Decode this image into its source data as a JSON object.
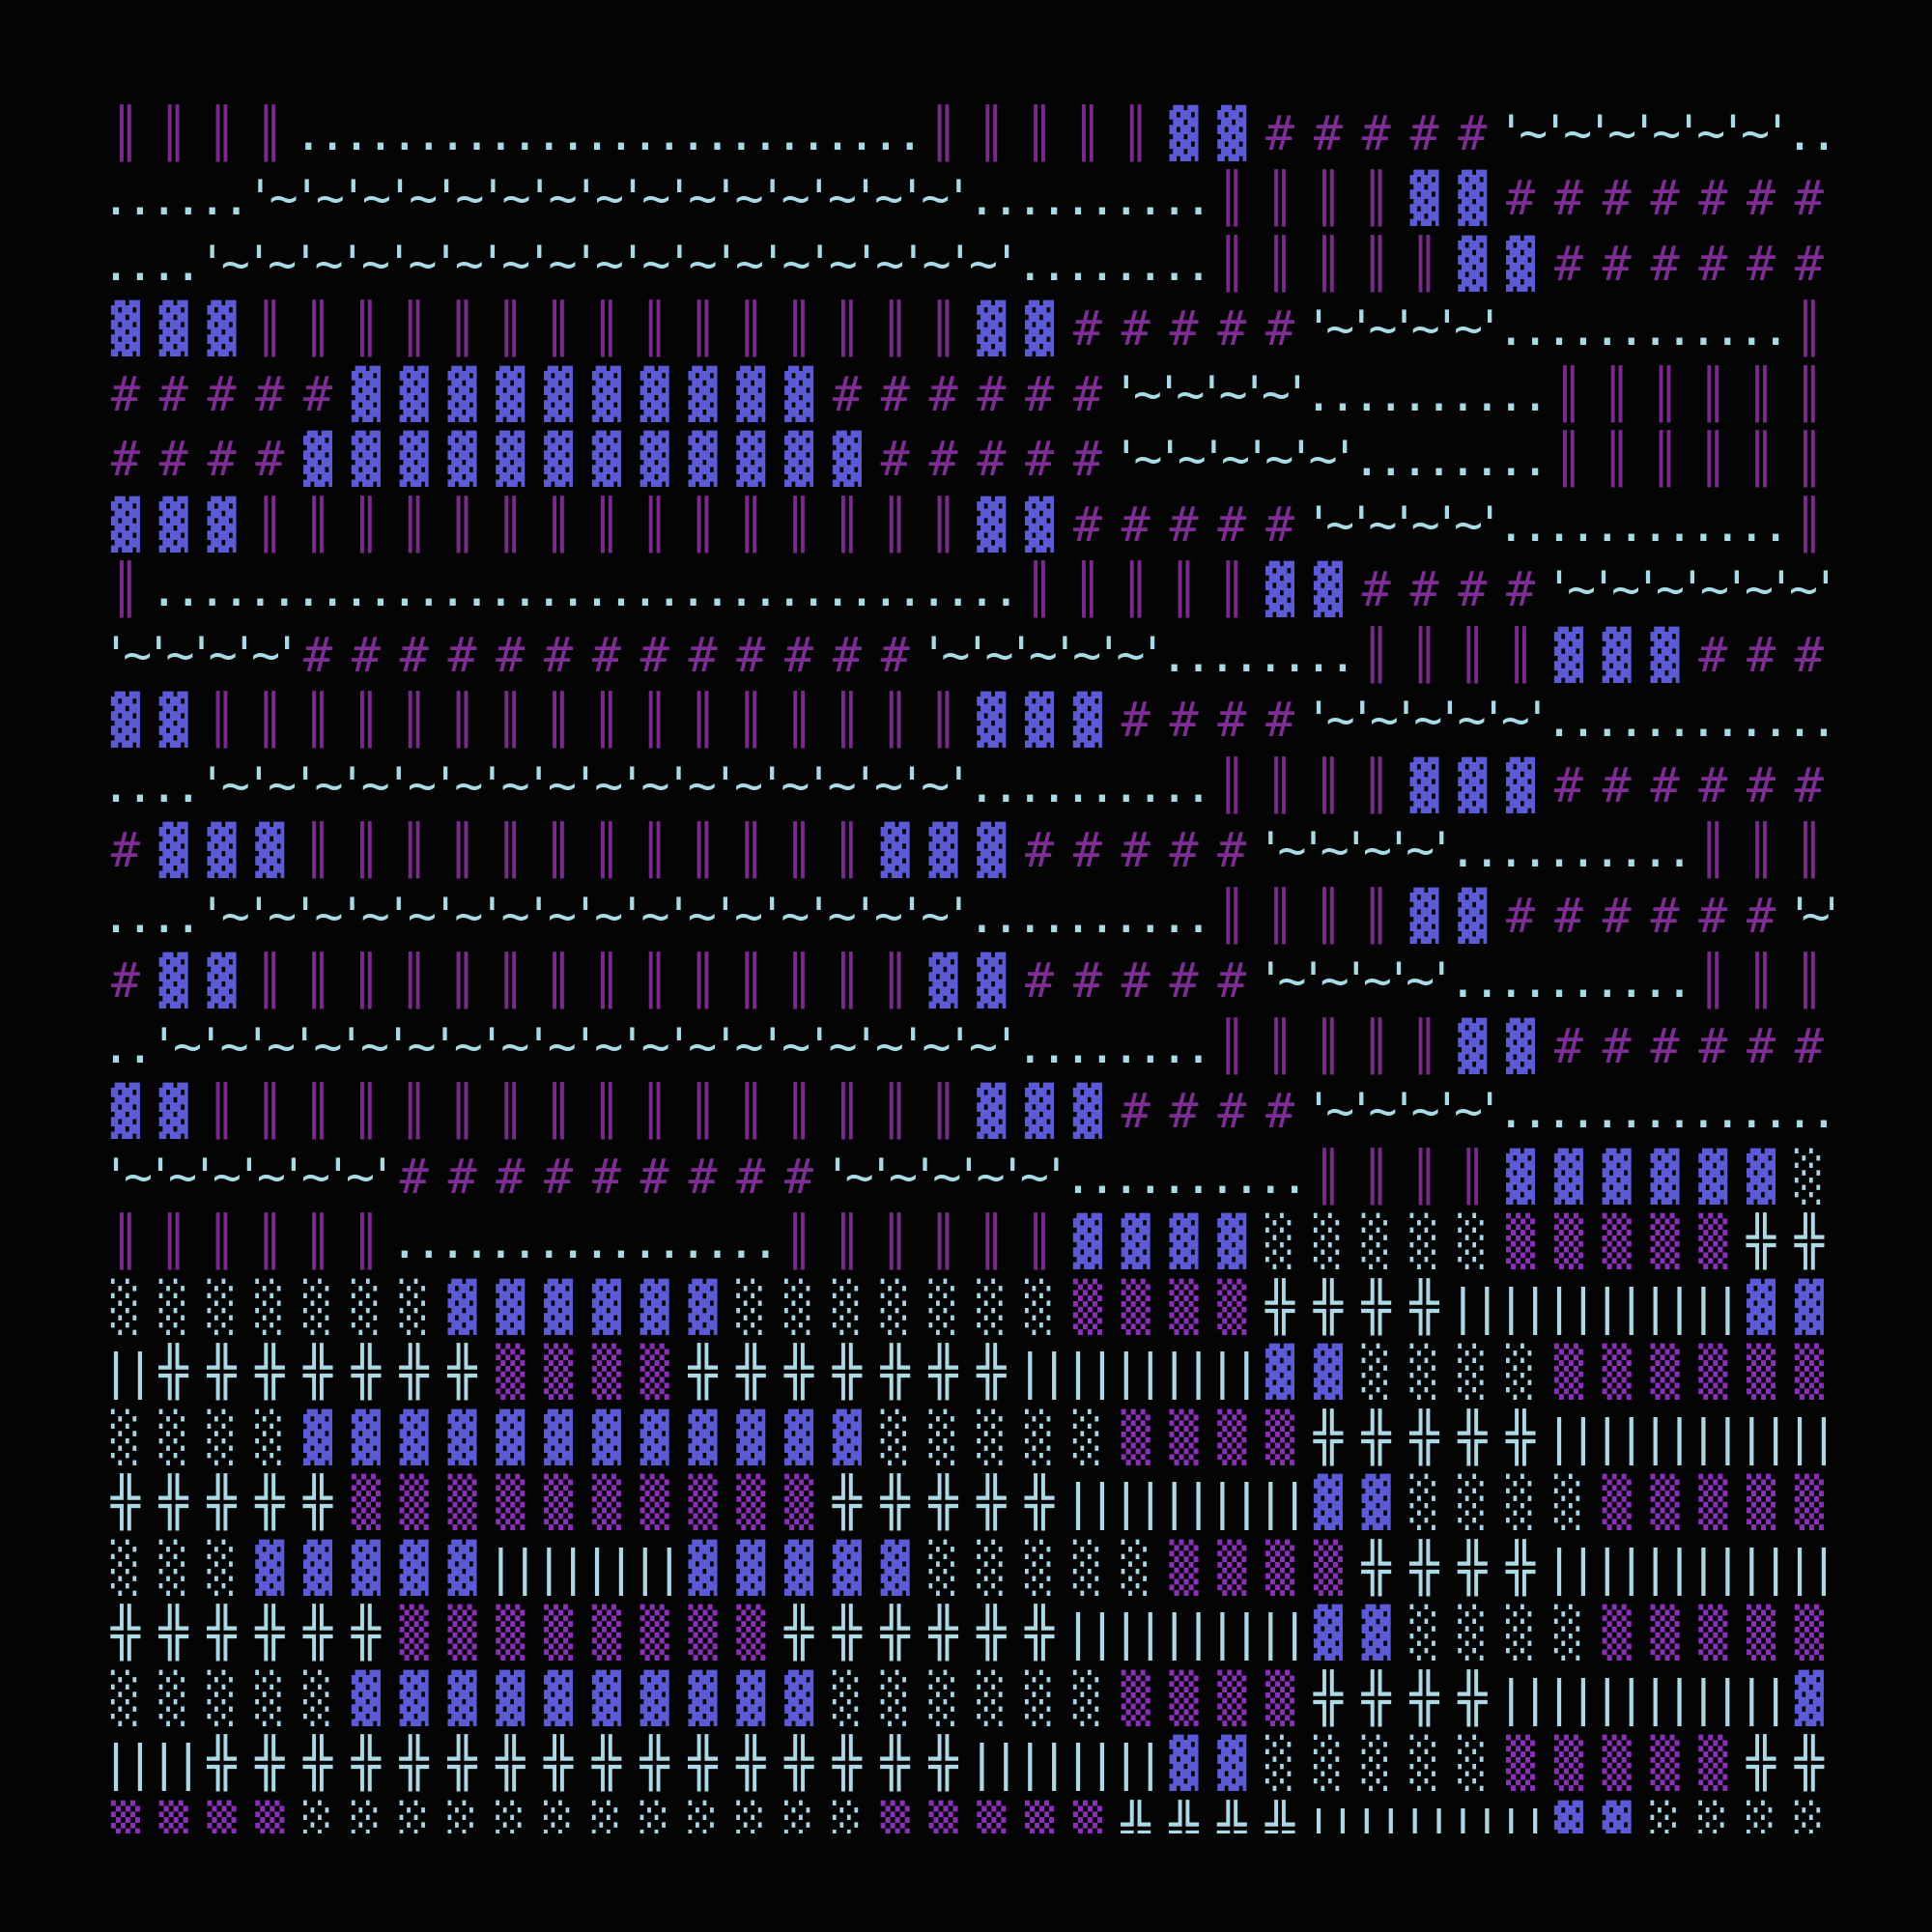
{
  "palette": {
    "background": "#040404",
    "double_bar": "#7a2a8c",
    "dark_shade": "#5b5bd6",
    "hash": "#7d2d94",
    "tilde": "#a9dbe6",
    "dots": "#a9dbe6",
    "light_shade": "#a9d3e6",
    "medium_shade": "#8a2fb8",
    "cross": "#add8e6",
    "pipes": "#add8e6"
  },
  "rows": [
    [
      [
        "..",
        5
      ],
      [
        " ",
        11
      ],
      [
        "..",
        5
      ],
      [
        " ",
        15
      ]
    ],
    [
      [
        "║",
        4
      ],
      [
        "..",
        13
      ],
      [
        "║",
        5
      ],
      [
        "▓",
        2
      ],
      [
        "#",
        5
      ],
      [
        "'~",
        6
      ],
      [
        "..",
        1
      ]
    ],
    [
      [
        "..",
        3
      ],
      [
        "'~",
        15
      ],
      [
        "..",
        5
      ],
      [
        "║",
        4
      ],
      [
        "▓",
        2
      ],
      [
        "#",
        7
      ]
    ],
    [
      [
        "..",
        2
      ],
      [
        "'~",
        17
      ],
      [
        "..",
        4
      ],
      [
        "║",
        5
      ],
      [
        "▓",
        2
      ],
      [
        "#",
        6
      ]
    ],
    [
      [
        "▓",
        3
      ],
      [
        "║",
        15
      ],
      [
        "▓",
        2
      ],
      [
        "#",
        5
      ],
      [
        "'~",
        4
      ],
      [
        "..",
        6
      ],
      [
        "║",
        1
      ]
    ],
    [
      [
        "#",
        5
      ],
      [
        "▓",
        10
      ],
      [
        "#",
        6
      ],
      [
        "'~",
        4
      ],
      [
        "..",
        5
      ],
      [
        "║",
        6
      ]
    ],
    [
      [
        "#",
        4
      ],
      [
        "▓",
        12
      ],
      [
        "#",
        5
      ],
      [
        "'~",
        5
      ],
      [
        "..",
        4
      ],
      [
        "║",
        6
      ]
    ],
    [
      [
        "▓",
        3
      ],
      [
        "║",
        15
      ],
      [
        "▓",
        2
      ],
      [
        "#",
        5
      ],
      [
        "'~",
        4
      ],
      [
        "..",
        6
      ],
      [
        "║",
        1
      ]
    ],
    [
      [
        "║",
        1
      ],
      [
        "..",
        18
      ],
      [
        "║",
        5
      ],
      [
        "▓",
        2
      ],
      [
        "#",
        4
      ],
      [
        "'~",
        6
      ]
    ],
    [
      [
        "'~",
        4
      ],
      [
        "#",
        13
      ],
      [
        "'~",
        5
      ],
      [
        "..",
        4
      ],
      [
        "║",
        4
      ],
      [
        "▓",
        3
      ],
      [
        "#",
        3
      ]
    ],
    [
      [
        "▓",
        2
      ],
      [
        "║",
        16
      ],
      [
        "▓",
        3
      ],
      [
        "#",
        4
      ],
      [
        "'~",
        5
      ],
      [
        "..",
        6
      ]
    ],
    [
      [
        "..",
        2
      ],
      [
        "'~",
        16
      ],
      [
        "..",
        5
      ],
      [
        "║",
        4
      ],
      [
        "▓",
        3
      ],
      [
        "#",
        6
      ]
    ],
    [
      [
        "#",
        1
      ],
      [
        "▓",
        3
      ],
      [
        "║",
        12
      ],
      [
        "▓",
        3
      ],
      [
        "#",
        5
      ],
      [
        "'~",
        4
      ],
      [
        "..",
        5
      ],
      [
        "║",
        3
      ]
    ],
    [
      [
        "..",
        2
      ],
      [
        "'~",
        16
      ],
      [
        "..",
        5
      ],
      [
        "║",
        4
      ],
      [
        "▓",
        2
      ],
      [
        "#",
        6
      ],
      [
        "'~",
        1
      ]
    ],
    [
      [
        "#",
        1
      ],
      [
        "▓",
        2
      ],
      [
        "║",
        14
      ],
      [
        "▓",
        2
      ],
      [
        "#",
        5
      ],
      [
        "'~",
        4
      ],
      [
        "..",
        5
      ],
      [
        "║",
        3
      ]
    ],
    [
      [
        "..",
        1
      ],
      [
        "'~",
        18
      ],
      [
        "..",
        4
      ],
      [
        "║",
        5
      ],
      [
        "▓",
        2
      ],
      [
        "#",
        6
      ]
    ],
    [
      [
        "▓",
        2
      ],
      [
        "║",
        16
      ],
      [
        "▓",
        3
      ],
      [
        "#",
        4
      ],
      [
        "'~",
        4
      ],
      [
        "..",
        7
      ]
    ],
    [
      [
        "'~",
        6
      ],
      [
        "#",
        9
      ],
      [
        "'~",
        5
      ],
      [
        "..",
        5
      ],
      [
        "║",
        4
      ],
      [
        "▓",
        6
      ],
      [
        "░",
        1
      ]
    ],
    [
      [
        "║",
        6
      ],
      [
        "..",
        8
      ],
      [
        "║",
        6
      ],
      [
        "▓",
        4
      ],
      [
        "░",
        5
      ],
      [
        "▒",
        5
      ],
      [
        "╬",
        2
      ]
    ],
    [
      [
        "░",
        7
      ],
      [
        "▓",
        6
      ],
      [
        "░",
        7
      ],
      [
        "▒",
        4
      ],
      [
        "╬",
        4
      ],
      [
        "||",
        6
      ],
      [
        "▓",
        2
      ]
    ],
    [
      [
        "||",
        1
      ],
      [
        "╬",
        7
      ],
      [
        "▒",
        4
      ],
      [
        "╬",
        7
      ],
      [
        "||",
        5
      ],
      [
        "▓",
        2
      ],
      [
        "░",
        4
      ],
      [
        "▒",
        6
      ]
    ],
    [
      [
        "░",
        4
      ],
      [
        "▓",
        12
      ],
      [
        "░",
        5
      ],
      [
        "▒",
        4
      ],
      [
        "╬",
        5
      ],
      [
        "||",
        6
      ]
    ],
    [
      [
        "╬",
        5
      ],
      [
        "▒",
        10
      ],
      [
        "╬",
        5
      ],
      [
        "||",
        5
      ],
      [
        "▓",
        2
      ],
      [
        "░",
        4
      ],
      [
        "▒",
        5
      ]
    ],
    [
      [
        "░",
        3
      ],
      [
        "▓",
        5
      ],
      [
        "||",
        4
      ],
      [
        "▓",
        5
      ],
      [
        "░",
        5
      ],
      [
        "▒",
        4
      ],
      [
        "╬",
        4
      ],
      [
        "||",
        6
      ]
    ],
    [
      [
        "╬",
        6
      ],
      [
        "▒",
        8
      ],
      [
        "╬",
        6
      ],
      [
        "||",
        5
      ],
      [
        "▓",
        2
      ],
      [
        "░",
        4
      ],
      [
        "▒",
        5
      ]
    ],
    [
      [
        "░",
        5
      ],
      [
        "▓",
        10
      ],
      [
        "░",
        6
      ],
      [
        "▒",
        4
      ],
      [
        "╬",
        4
      ],
      [
        "||",
        6
      ],
      [
        "▓",
        1
      ]
    ],
    [
      [
        "||",
        2
      ],
      [
        "╬",
        16
      ],
      [
        "||",
        4
      ],
      [
        "▓",
        2
      ],
      [
        "░",
        5
      ],
      [
        "▒",
        5
      ],
      [
        "╬",
        2
      ]
    ],
    [
      [
        "▒",
        4
      ],
      [
        "░",
        12
      ],
      [
        "▒",
        5
      ],
      [
        "╬",
        4
      ],
      [
        "||",
        5
      ],
      [
        "▓",
        2
      ],
      [
        "░",
        4
      ]
    ]
  ]
}
